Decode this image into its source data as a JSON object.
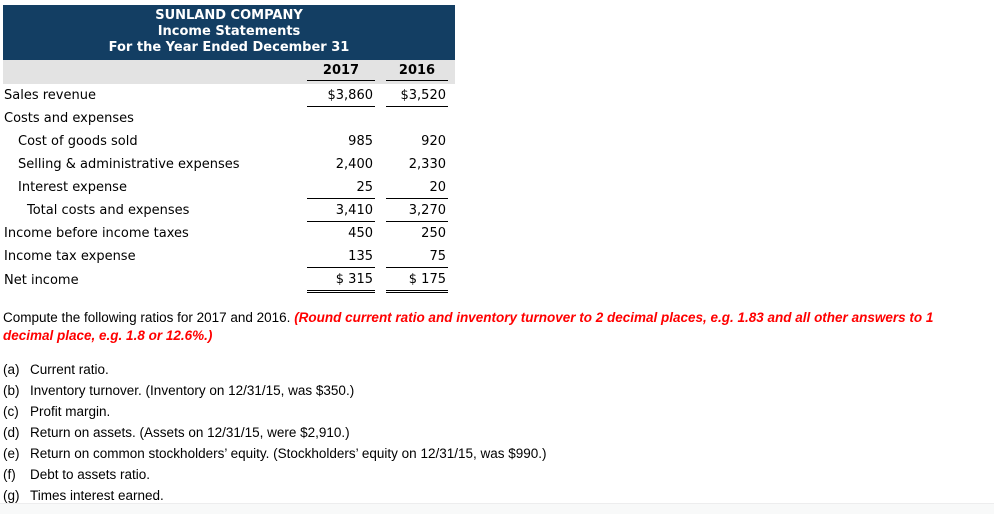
{
  "colors": {
    "header_bg": "#133e63",
    "header_text": "#ffffff",
    "subheader_bg": "#e3e3e3",
    "emphasis_red": "#ff0000"
  },
  "table": {
    "title_lines": [
      "SUNLAND COMPANY",
      "Income Statements",
      "For the Year Ended December 31"
    ],
    "col_headers": [
      "2017",
      "2016"
    ],
    "rows": [
      {
        "label": "Sales revenue",
        "v2017": "$3,860",
        "v2016": "$3,520"
      },
      {
        "label": "Costs and expenses",
        "v2017": "",
        "v2016": ""
      },
      {
        "label": "Cost of goods sold",
        "v2017": "985",
        "v2016": "920"
      },
      {
        "label": "Selling & administrative expenses",
        "v2017": "2,400",
        "v2016": "2,330"
      },
      {
        "label": "Interest expense",
        "v2017": "25",
        "v2016": "20"
      },
      {
        "label": "Total costs and expenses",
        "v2017": "3,410",
        "v2016": "3,270"
      },
      {
        "label": "Income before income taxes",
        "v2017": "450",
        "v2016": "250"
      },
      {
        "label": "Income tax expense",
        "v2017": "135",
        "v2016": "75"
      },
      {
        "label": "Net income",
        "v2017": "$ 315",
        "v2016": "$ 175"
      }
    ]
  },
  "instructions": {
    "prefix": "Compute the following ratios for 2017 and 2016. ",
    "emphasis": "(Round current ratio and inventory turnover to 2 decimal places, e.g. 1.83 and all other answers to 1 decimal place, e.g. 1.8 or 12.6%.)"
  },
  "items": [
    {
      "marker": "(a)",
      "text": "Current ratio."
    },
    {
      "marker": "(b)",
      "text": "Inventory turnover. (Inventory on 12/31/15, was $350.)"
    },
    {
      "marker": "(c)",
      "text": "Profit margin."
    },
    {
      "marker": "(d)",
      "text": "Return on assets. (Assets on 12/31/15, were $2,910.)"
    },
    {
      "marker": "(e)",
      "text": "Return on common stockholders’ equity. (Stockholders’ equity on 12/31/15, was $990.)"
    },
    {
      "marker": "(f)",
      "text": "Debt to assets ratio."
    },
    {
      "marker": "(g)",
      "text": "Times interest earned."
    }
  ]
}
